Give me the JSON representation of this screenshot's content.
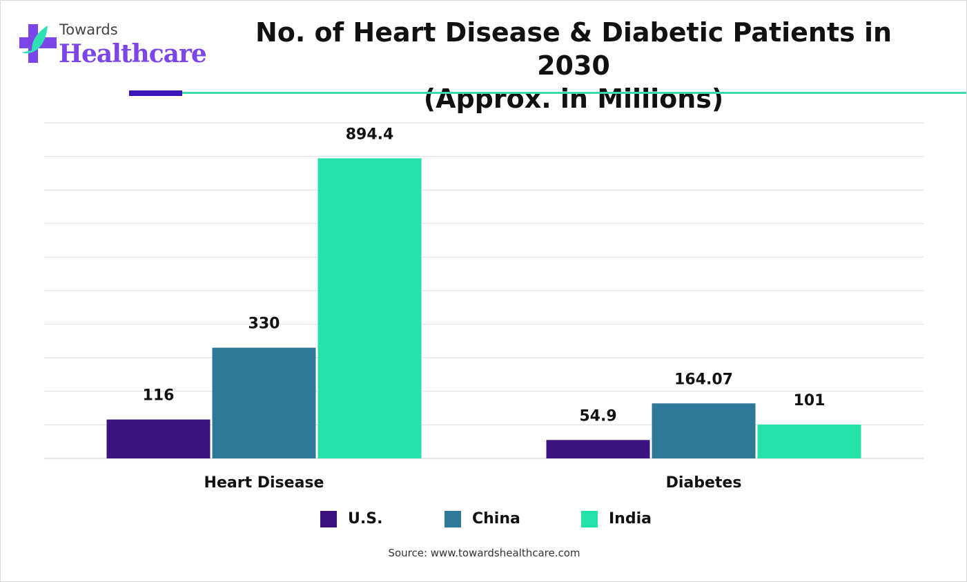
{
  "logo": {
    "line1": "Towards",
    "line2": "Healthcare"
  },
  "chart_data": {
    "type": "bar",
    "title": "No. of Heart Disease & Diabetic Patients in 2030",
    "subtitle": "(Approx. in Millions)",
    "categories": [
      "Heart Disease",
      "Diabetes"
    ],
    "series": [
      {
        "name": "U.S.",
        "values": [
          116,
          54.9
        ],
        "labels": [
          "116",
          "54.9"
        ],
        "color": "#3d1281"
      },
      {
        "name": "China",
        "values": [
          330,
          164.07
        ],
        "labels": [
          "330",
          "164.07"
        ],
        "color": "#2e7898"
      },
      {
        "name": "India",
        "values": [
          894.4,
          101
        ],
        "labels": [
          "894.4",
          "101"
        ],
        "color": "#25e2a9"
      }
    ],
    "ylim": [
      0,
      1000
    ],
    "grid": true,
    "grid_step": 100,
    "legend": "bottom"
  },
  "source": "Source: www.towardshealthcare.com"
}
